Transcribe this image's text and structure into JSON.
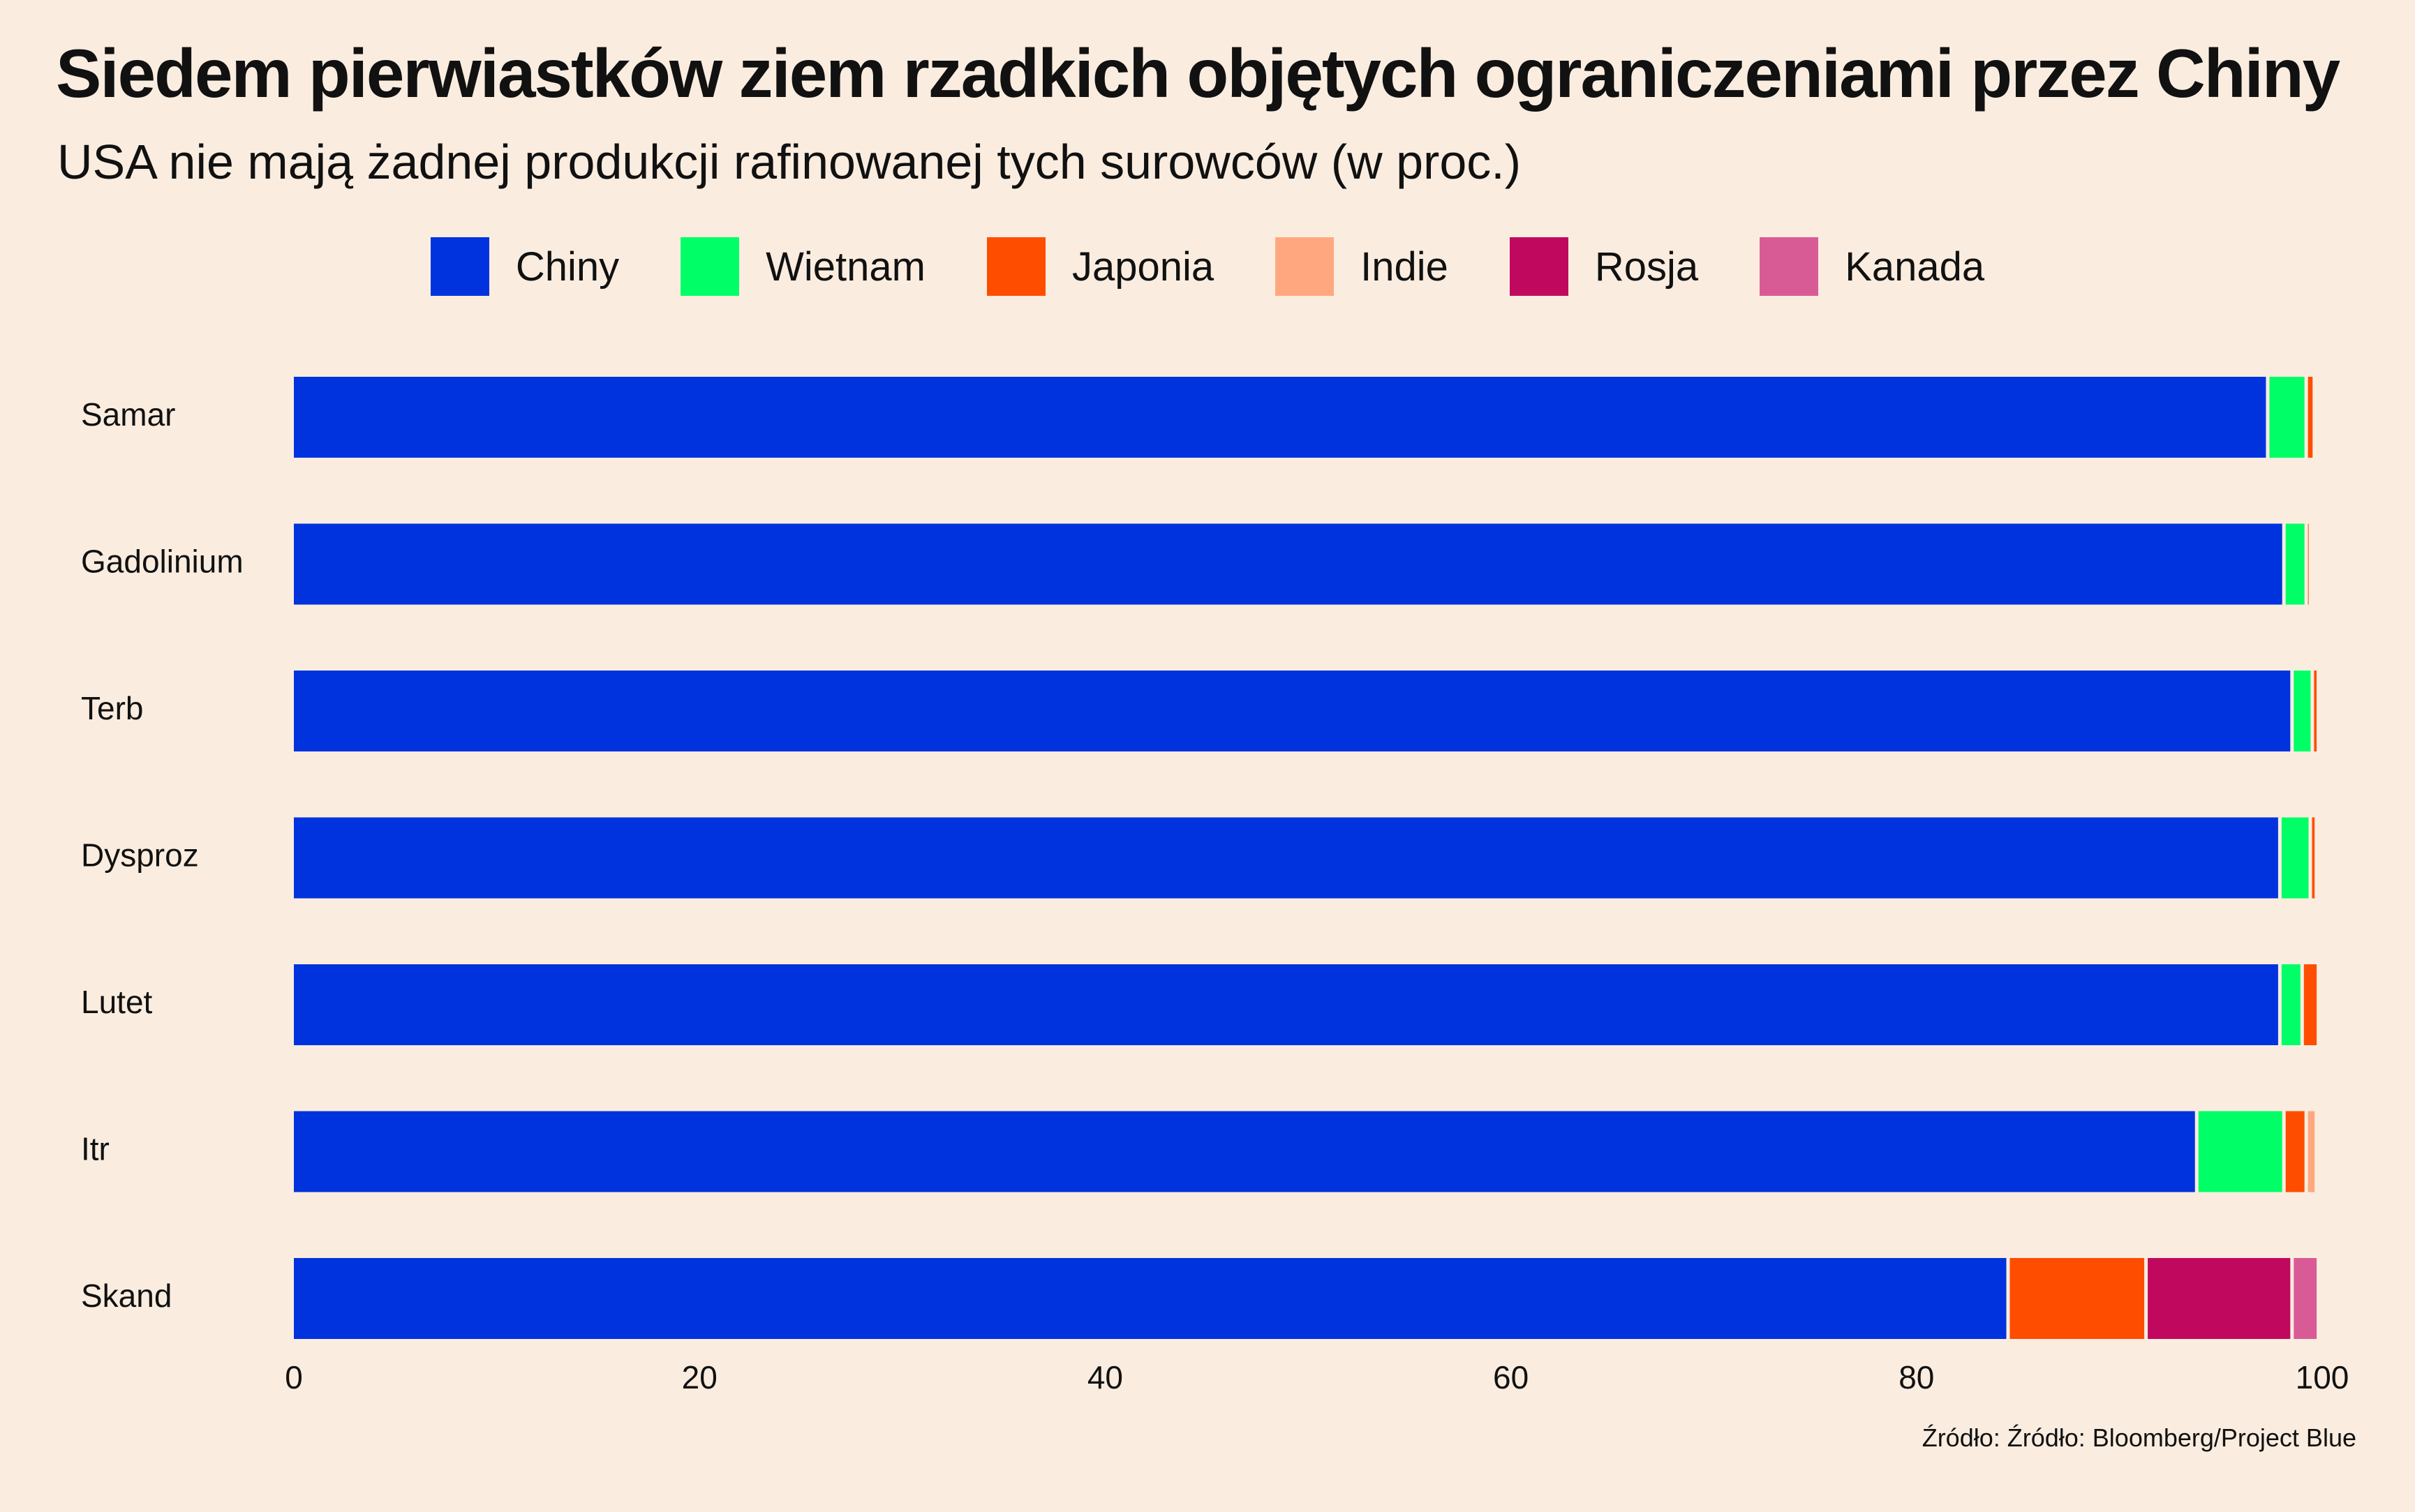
{
  "header": {
    "title": "Siedem pierwiastków ziem rzadkich objętych ograniczeniami przez Chiny",
    "subtitle": "USA nie mają żadnej produkcji rafinowanej tych surowców (w proc.)"
  },
  "footer": {
    "source": "Źródło: Źródło: Bloomberg/Project Blue"
  },
  "chart_data": {
    "type": "bar",
    "orientation": "horizontal",
    "stacked": true,
    "title": "Siedem pierwiastków ziem rzadkich objętych ograniczeniami przez Chiny",
    "subtitle": "USA nie mają żadnej produkcji rafinowanej tych surowców (w proc.)",
    "xlabel": "",
    "ylabel": "",
    "xlim": [
      0,
      100
    ],
    "xticks": [
      0,
      20,
      40,
      60,
      80,
      100
    ],
    "grid": false,
    "legend_position": "top-center",
    "categories": [
      "Samar",
      "Gadolinium",
      "Terb",
      "Dysproz",
      "Lutet",
      "Itr",
      "Skand"
    ],
    "series": [
      {
        "name": "Chiny",
        "color": "#0033dd",
        "values": [
          97.4,
          98.2,
          98.6,
          98.0,
          98.0,
          93.9,
          84.6
        ]
      },
      {
        "name": "Wietnam",
        "color": "#00ff66",
        "values": [
          1.9,
          1.1,
          1.0,
          1.5,
          1.1,
          4.3,
          0
        ]
      },
      {
        "name": "Japonia",
        "color": "#ff4d00",
        "values": [
          0.4,
          0.2,
          0.3,
          0.3,
          0.8,
          1.1,
          6.8
        ]
      },
      {
        "name": "Indie",
        "color": "#ffa880",
        "values": [
          0,
          0,
          0,
          0,
          0,
          0.5,
          0
        ]
      },
      {
        "name": "Rosja",
        "color": "#c0095e",
        "values": [
          0,
          0,
          0,
          0,
          0,
          0,
          7.2
        ]
      },
      {
        "name": "Kanada",
        "color": "#d95b96",
        "values": [
          0,
          0,
          0,
          0,
          0,
          0,
          1.3
        ]
      }
    ]
  }
}
